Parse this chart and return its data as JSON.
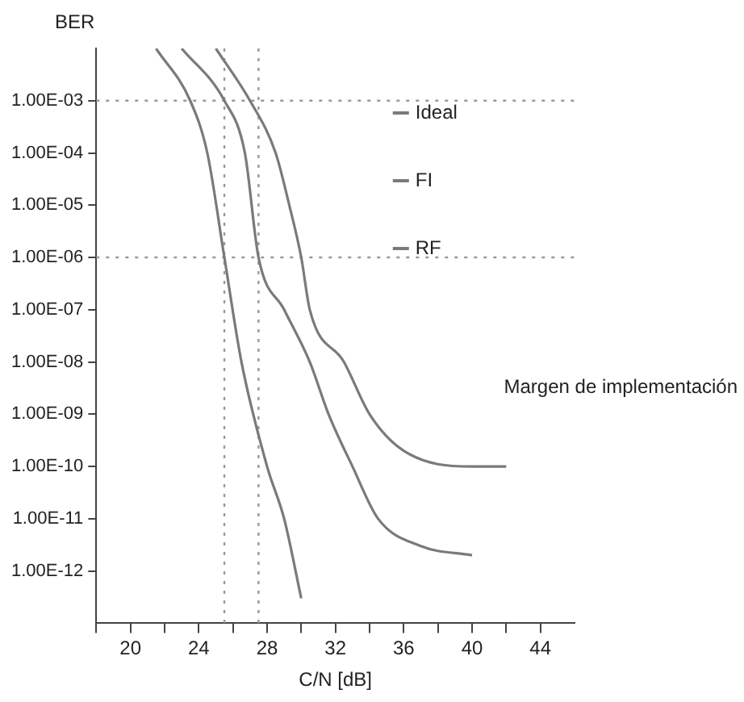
{
  "chart_data": {
    "type": "line",
    "ylabel": "BER",
    "xlabel": "C/N [dB]",
    "log": "y",
    "grid": false,
    "legend": "right",
    "marker": "none",
    "line_style": "solid",
    "xlim": [
      18,
      46
    ],
    "xticks": [
      {
        "value": 18,
        "label": null
      },
      20,
      {
        "value": 22,
        "label": null
      },
      24,
      {
        "value": 26,
        "label": null
      },
      28,
      {
        "value": 30,
        "label": null
      },
      32,
      {
        "value": 34,
        "label": null
      },
      36,
      {
        "value": 38,
        "label": null
      },
      40,
      {
        "value": 42,
        "label": null
      },
      44
    ],
    "ylim": [
      1e-13,
      0.01
    ],
    "yticks": [
      {
        "value": 0.001,
        "label": "1.00E-03"
      },
      {
        "value": 0.0001,
        "label": "1.00E-04"
      },
      {
        "value": 1e-05,
        "label": "1.00E-05"
      },
      {
        "value": 1e-06,
        "label": "1.00E-06"
      },
      {
        "value": 1e-07,
        "label": "1.00E-07"
      },
      {
        "value": 1e-08,
        "label": "1.00E-08"
      },
      {
        "value": 1e-09,
        "label": "1.00E-09"
      },
      {
        "value": 1e-10,
        "label": "1.00E-10"
      },
      {
        "value": 1e-11,
        "label": "1.00E-11"
      },
      {
        "value": 1e-12,
        "label": "1.00E-12"
      }
    ],
    "series": [
      {
        "name": "Ideal",
        "color": "#7a7a7a",
        "x": [
          21.5,
          23.5,
          24.5,
          25.5,
          26.5,
          28,
          29,
          30
        ],
        "values": [
          0.01,
          0.001,
          0.0001,
          1e-06,
          1e-08,
          1e-10,
          1e-11,
          3e-13
        ]
      },
      {
        "name": "FI",
        "color": "#7a7a7a",
        "x": [
          23,
          25.5,
          26.7,
          27.5,
          29,
          30.5,
          31.6,
          33,
          34.5,
          37,
          40
        ],
        "values": [
          0.01,
          0.001,
          0.0001,
          1e-06,
          1e-07,
          1e-08,
          1e-09,
          1e-10,
          1e-11,
          3e-12,
          2e-12
        ]
      },
      {
        "name": "RF",
        "color": "#7a7a7a",
        "x": [
          25,
          27,
          28.5,
          29.3,
          30,
          30.5,
          32.5,
          34,
          36,
          40,
          42
        ],
        "values": [
          0.01,
          0.001,
          0.0001,
          1e-05,
          1e-06,
          1e-07,
          1e-08,
          1e-09,
          2e-10,
          1e-10,
          1e-10
        ]
      }
    ],
    "ref_lines": [
      {
        "axis": "y",
        "value": 0.001,
        "color": "#999999",
        "line_style": "dotted"
      },
      {
        "axis": "y",
        "value": 1e-06,
        "color": "#999999",
        "line_style": "dotted"
      },
      {
        "axis": "x",
        "value": 25.5,
        "color": "#999999",
        "line_style": "dotted"
      },
      {
        "axis": "x",
        "value": 27.5,
        "color": "#999999",
        "line_style": "dotted"
      }
    ],
    "annotations": [
      "Margen de implementación"
    ]
  }
}
